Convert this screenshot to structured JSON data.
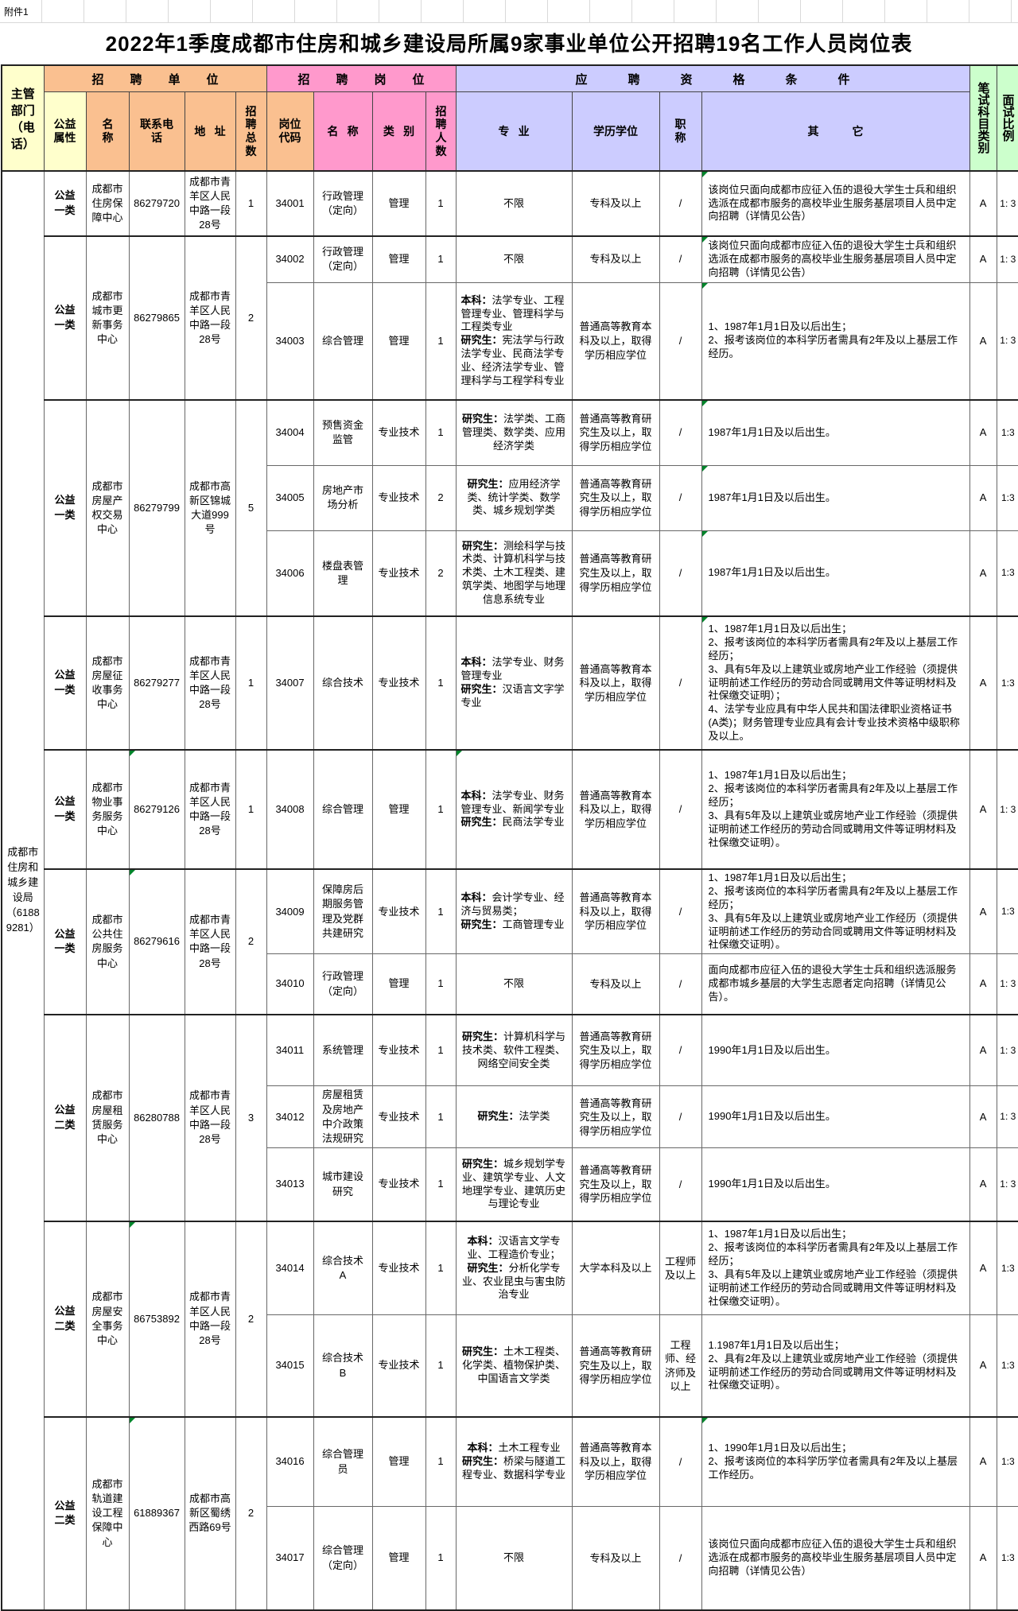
{
  "attachment": "附件1",
  "title": "2022年1季度成都市住房和城乡建设局所属9家事业单位公开招聘19名工作人员岗位表",
  "table_header": {
    "dept": "主管部门（电话）",
    "groups": {
      "unit": "招聘单位",
      "post": "招聘岗位",
      "qualification": "应聘资格条件"
    },
    "columns": {
      "welfare": "公益属性",
      "unit_name": "名称",
      "phone": "联系电话",
      "address": "地址",
      "total": "招聘总数",
      "code": "岗位代码",
      "post_name": "名称",
      "category": "类别",
      "headcount": "招聘人数",
      "major": "专业",
      "degree": "学历学位",
      "title": "职称",
      "other": "其它",
      "exam": "笔试科目类别",
      "ratio": "面试比例"
    }
  },
  "dept_value": "成都市住房和城乡建设局（61889281）",
  "units": [
    {
      "welfare": "公益一类",
      "name": "成都市住房保障中心",
      "phone": "86279720",
      "address": "成都市青羊区人民中路一段28号",
      "total": "1",
      "mark_phone": false,
      "posts": [
        {
          "code": "34001",
          "name": "行政管理（定向）",
          "category": "管理",
          "count": "1",
          "major": [
            {
              "label": "",
              "text": "不限"
            }
          ],
          "major_align": "center",
          "degree": "专科及以上",
          "title": "/",
          "other": "该岗位只面向成都市应征入伍的退役大学生士兵和组织选派在成都市服务的高校毕业生服务基层项目人员中定向招聘（详情见公告）",
          "exam": "A",
          "ratio": "1: 3",
          "marks": [
            "other"
          ]
        }
      ]
    },
    {
      "welfare": "公益一类",
      "name": "成都市城市更新事务中心",
      "phone": "86279865",
      "address": "成都市青羊区人民中路一段28号",
      "total": "2",
      "mark_phone": false,
      "posts": [
        {
          "code": "34002",
          "name": "行政管理（定向）",
          "category": "管理",
          "count": "1",
          "major": [
            {
              "label": "",
              "text": "不限"
            }
          ],
          "major_align": "center",
          "degree": "专科及以上",
          "title": "/",
          "other": "该岗位只面向成都市应征入伍的退役大学生士兵和组织选派在成都市服务的高校毕业生服务基层项目人员中定向招聘（详情见公告）",
          "exam": "A",
          "ratio": "1: 3",
          "marks": [
            "other"
          ]
        },
        {
          "code": "34003",
          "name": "综合管理",
          "category": "管理",
          "count": "1",
          "major": [
            {
              "label": "本科：",
              "text": "法学专业、工程管理专业、管理科学与工程类专业"
            },
            {
              "label": "研究生：",
              "text": "宪法学与行政法学专业、民商法学专业、经济法学专业、管理科学与工程学科专业"
            }
          ],
          "major_align": "left",
          "degree": "普通高等教育本科及以上，取得学历相应学位",
          "title": "/",
          "other": "1、1987年1月1日及以后出生；\n2、报考该岗位的本科学历者需具有2年及以上基层工作经历。",
          "exam": "A",
          "ratio": "1: 3",
          "marks": [
            "other"
          ]
        }
      ]
    },
    {
      "welfare": "公益一类",
      "name": "成都市房屋产权交易中心",
      "phone": "86279799",
      "address": "成都市高新区锦城大道999号",
      "total": "5",
      "mark_phone": false,
      "posts": [
        {
          "code": "34004",
          "name": "预售资金监管",
          "category": "专业技术",
          "count": "1",
          "major": [
            {
              "label": "研究生：",
              "text": "法学类、工商管理类、数学类、应用经济学类"
            }
          ],
          "major_align": "center",
          "degree": "普通高等教育研究生及以上，取得学历相应学位",
          "title": "/",
          "other": "1987年1月1日及以后出生。",
          "exam": "A",
          "ratio": "1:3",
          "marks": [
            "other"
          ]
        },
        {
          "code": "34005",
          "name": "房地产市场分析",
          "category": "专业技术",
          "count": "2",
          "major": [
            {
              "label": "研究生：",
              "text": "应用经济学类、统计学类、数学类、城乡规划学类"
            }
          ],
          "major_align": "center",
          "degree": "普通高等教育研究生及以上，取得学历相应学位",
          "title": "/",
          "other": "1987年1月1日及以后出生。",
          "exam": "A",
          "ratio": "1:3",
          "marks": [
            "other"
          ]
        },
        {
          "code": "34006",
          "name": "楼盘表管理",
          "category": "专业技术",
          "count": "2",
          "major": [
            {
              "label": "研究生：",
              "text": "测绘科学与技术类、计算机科学与技术类、土木工程类、建筑学类、地图学与地理信息系统专业"
            }
          ],
          "major_align": "center",
          "degree": "普通高等教育研究生及以上，取得学历相应学位",
          "title": "/",
          "other": "1987年1月1日及以后出生。",
          "exam": "A",
          "ratio": "1:3",
          "marks": [
            "other"
          ]
        }
      ]
    },
    {
      "welfare": "公益一类",
      "name": "成都市房屋征收事务中心",
      "phone": "86279277",
      "address": "成都市青羊区人民中路一段28号",
      "total": "1",
      "mark_phone": false,
      "posts": [
        {
          "code": "34007",
          "name": "综合技术",
          "category": "专业技术",
          "count": "1",
          "major": [
            {
              "label": "本科：",
              "text": "法学专业、财务管理专业"
            },
            {
              "label": "研究生：",
              "text": "汉语言文字学专业"
            }
          ],
          "major_align": "left",
          "degree": "普通高等教育本科及以上，取得学历相应学位",
          "title": "/",
          "other": "1、1987年1月1日及以后出生；\n2、报考该岗位的本科学历者需具有2年及以上基层工作经历；\n3、具有5年及以上建筑业或房地产业工作经验（须提供证明前述工作经历的劳动合同或聘用文件等证明材料及社保缴交证明）；\n4、法学专业应具有中华人民共和国法律职业资格证书(A类)；财务管理专业应具有会计专业技术资格中级职称及以上。",
          "exam": "A",
          "ratio": "1:3",
          "marks": [
            "other"
          ]
        }
      ]
    },
    {
      "welfare": "公益一类",
      "name": "成都市物业事务服务中心",
      "phone": "86279126",
      "address": "成都市青羊区人民中路一段28号",
      "total": "1",
      "mark_phone": true,
      "posts": [
        {
          "code": "34008",
          "name": "综合管理",
          "category": "管理",
          "count": "1",
          "major": [
            {
              "label": "本科：",
              "text": "法学专业、财务管理专业、新闻学专业"
            },
            {
              "label": "研究生：",
              "text": "民商法学专业"
            }
          ],
          "major_align": "left",
          "degree": "普通高等教育本科及以上，取得学历相应学位",
          "title": "/",
          "other": "1、1987年1月1日及以后出生；\n2、报考该岗位的本科学历者需具有2年及以上基层工作经历；\n3、具有5年及以上建筑业或房地产业工作经验（须提供证明前述工作经历的劳动合同或聘用文件等证明材料及社保缴交证明）。",
          "exam": "A",
          "ratio": "1: 3",
          "marks": [
            "major"
          ]
        }
      ]
    },
    {
      "welfare": "公益一类",
      "name": "成都市公共住房服务中心",
      "phone": "86279616",
      "address": "成都市青羊区人民中路一段28号",
      "total": "2",
      "mark_phone": true,
      "posts": [
        {
          "code": "34009",
          "name": "保障房后期服务管理及党群共建研究",
          "category": "专业技术",
          "count": "1",
          "major": [
            {
              "label": "本科：",
              "text": "会计学专业、经济与贸易类；"
            },
            {
              "label": "研究生：",
              "text": "工商管理专业"
            }
          ],
          "major_align": "left",
          "degree": "普通高等教育本科及以上，取得学历相应学位",
          "title": "/",
          "other": "1、1987年1月1日及以后出生；\n2、报考该岗位的本科学历者需具有2年及以上基层工作经历；\n3、具有5年及以上建筑业或房地产业工作经历（须提供证明前述工作经历的劳动合同或聘用文件等证明材料及社保缴交证明）。",
          "exam": "A",
          "ratio": "1:3",
          "marks": []
        },
        {
          "code": "34010",
          "name": "行政管理（定向）",
          "category": "管理",
          "count": "1",
          "major": [
            {
              "label": "",
              "text": "不限"
            }
          ],
          "major_align": "center",
          "degree": "专科及以上",
          "title": "/",
          "other": "面向成都市应征入伍的退役大学生士兵和组织选派服务成都市城乡基层的大学生志愿者定向招聘（详情见公告）。",
          "exam": "A",
          "ratio": "1: 3",
          "marks": []
        }
      ]
    },
    {
      "welfare": "公益二类",
      "name": "成都市房屋租赁服务中心",
      "phone": "86280788",
      "address": "成都市青羊区人民中路一段28号",
      "total": "3",
      "mark_phone": false,
      "posts": [
        {
          "code": "34011",
          "name": "系统管理",
          "category": "专业技术",
          "count": "1",
          "major": [
            {
              "label": "研究生：",
              "text": "计算机科学与技术类、软件工程类、网络空间安全类"
            }
          ],
          "major_align": "center",
          "degree": "普通高等教育研究生及以上，取得学历相应学位",
          "title": "/",
          "other": "1990年1月1日及以后出生。",
          "exam": "A",
          "ratio": "1: 3",
          "marks": []
        },
        {
          "code": "34012",
          "name": "房屋租赁及房地产中介政策法规研究",
          "category": "专业技术",
          "count": "1",
          "major": [
            {
              "label": "研究生：",
              "text": "法学类"
            }
          ],
          "major_align": "center",
          "degree": "普通高等教育研究生及以上，取得学历相应学位",
          "title": "/",
          "other": "1990年1月1日及以后出生。",
          "exam": "A",
          "ratio": "1: 3",
          "marks": []
        },
        {
          "code": "34013",
          "name": "城市建设研究",
          "category": "专业技术",
          "count": "1",
          "major": [
            {
              "label": "研究生：",
              "text": "城乡规划学专业、建筑学专业、人文地理学专业、建筑历史与理论专业"
            }
          ],
          "major_align": "center",
          "degree": "普通高等教育研究生及以上，取得学历相应学位",
          "title": "/",
          "other": "1990年1月1日及以后出生。",
          "exam": "A",
          "ratio": "1: 3",
          "marks": []
        }
      ]
    },
    {
      "welfare": "公益二类",
      "name": "成都市房屋安全事务中心",
      "phone": "86753892",
      "address": "成都市青羊区人民中路一段28号",
      "total": "2",
      "mark_phone": true,
      "posts": [
        {
          "code": "34014",
          "name": "综合技术A",
          "category": "专业技术",
          "count": "1",
          "major": [
            {
              "label": "本科：",
              "text": "汉语言文学专业、工程造价专业；"
            },
            {
              "label": "研究生：",
              "text": "分析化学专业、农业昆虫与害虫防治专业"
            }
          ],
          "major_align": "center",
          "degree": "大学本科及以上",
          "title": "工程师及以上",
          "other": "1、1987年1月1日及以后出生；\n2、报考该岗位的本科学历者需具有2年及以上基层工作经历；\n3、具有5年及以上建筑业或房地产业工作经验（须提供证明前述工作经历的劳动合同或聘用文件等证明材料及社保缴交证明）。",
          "exam": "A",
          "ratio": "1:3",
          "marks": []
        },
        {
          "code": "34015",
          "name": "综合技术B",
          "category": "专业技术",
          "count": "1",
          "major": [
            {
              "label": "研究生：",
              "text": "土木工程类、化学类、植物保护类、中国语言文学类"
            }
          ],
          "major_align": "center",
          "degree": "普通高等教育研究生及以上，取得学历相应学位",
          "title": "工程师、经济师及以上",
          "other": "1.1987年1月1日及以后出生；\n2、具有2年及以上建筑业或房地产业工作经验（须提供证明前述工作经历的劳动合同或聘用文件等证明材料及社保缴交证明）。",
          "exam": "A",
          "ratio": "1:3",
          "marks": []
        }
      ]
    },
    {
      "welfare": "公益二类",
      "name": "成都市轨道建设工程保障中心",
      "phone": "61889367",
      "address": "成都市高新区蜀绣西路69号",
      "total": "2",
      "mark_phone": true,
      "posts": [
        {
          "code": "34016",
          "name": "综合管理员",
          "category": "管理",
          "count": "1",
          "major": [
            {
              "label": "本科：",
              "text": "土木工程专业"
            },
            {
              "label": "研究生：",
              "text": "桥梁与隧道工程专业、数据科学专业"
            }
          ],
          "major_align": "center",
          "degree": "普通高等教育本科及以上，取得学历相应学位",
          "title": "/",
          "other": "1、1990年1月1日及以后出生；\n2、报考该岗位的本科学历学位者需具有2年及以上基层工作经历。",
          "exam": "A",
          "ratio": "1:3",
          "marks": [
            "other"
          ]
        },
        {
          "code": "34017",
          "name": "综合管理（定向）",
          "category": "管理",
          "count": "1",
          "major": [
            {
              "label": "",
              "text": "不限"
            }
          ],
          "major_align": "center",
          "degree": "专科及以上",
          "title": "/",
          "other": "该岗位只面向成都市应征入伍的退役大学生士兵和组织选派在成都市服务的高校毕业生服务基层项目人员中定向招聘（详情见公告）",
          "exam": "A",
          "ratio": "1:3",
          "marks": []
        }
      ]
    }
  ]
}
